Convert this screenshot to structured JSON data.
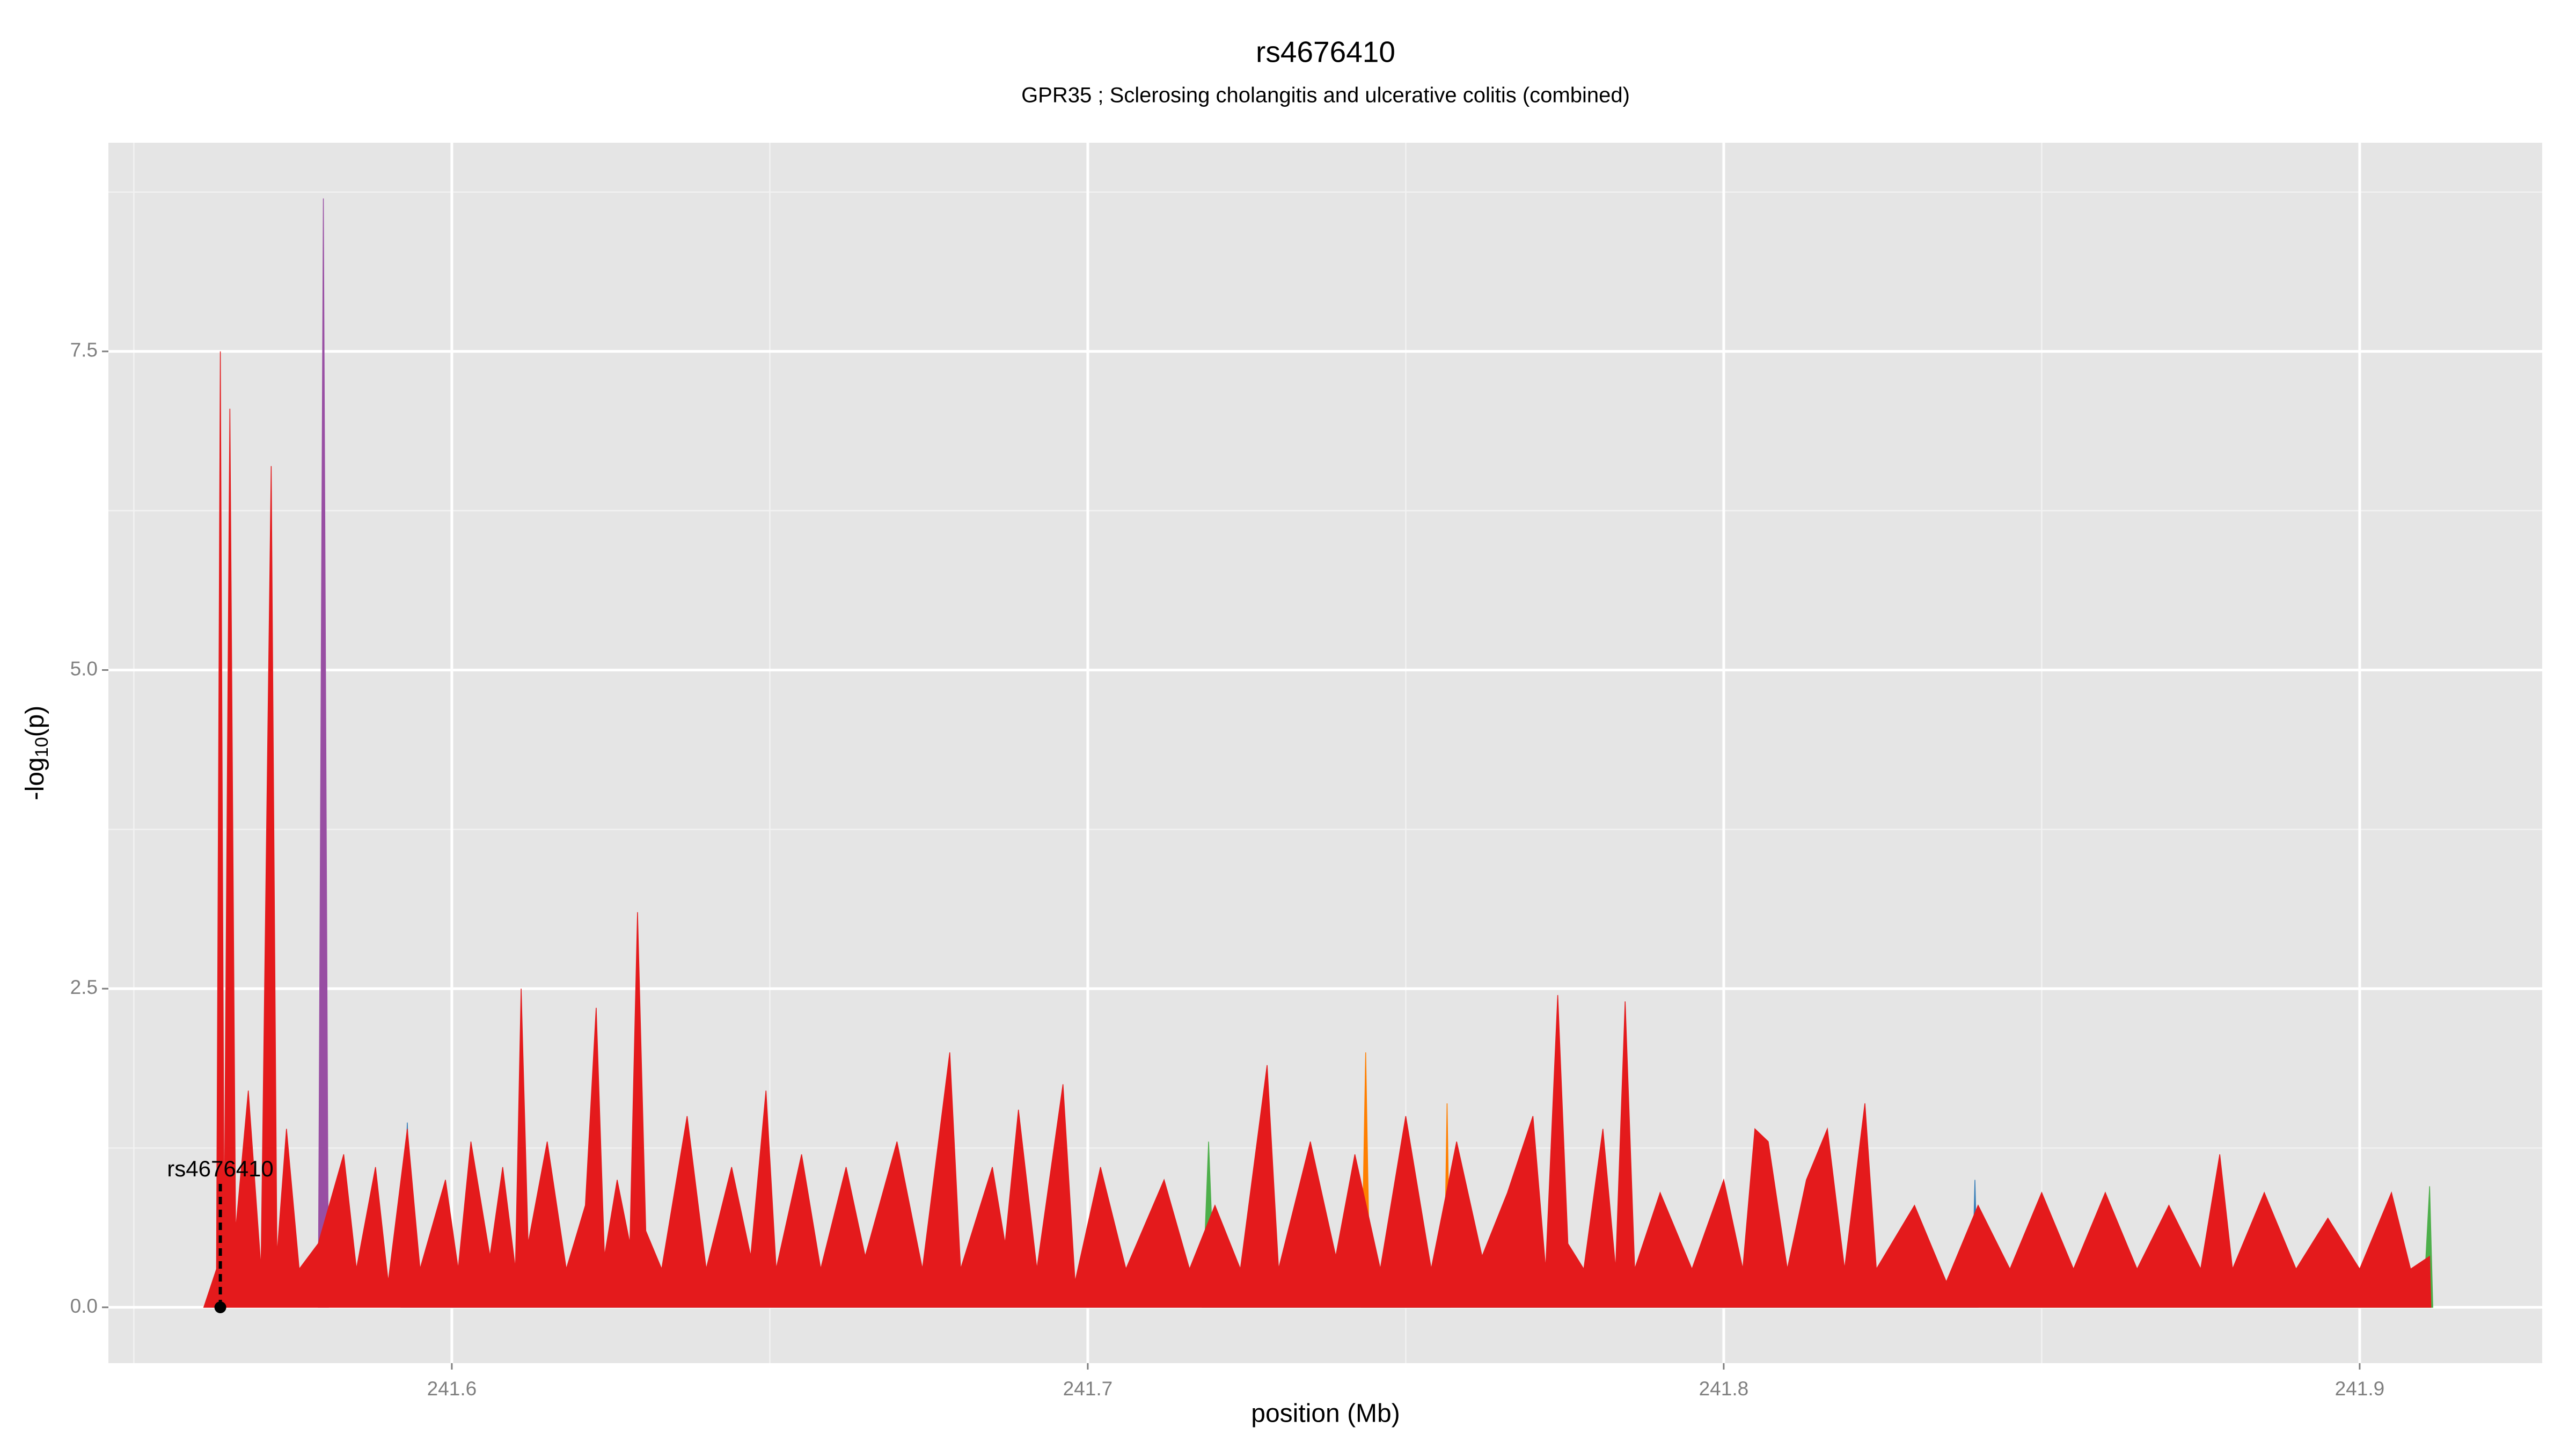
{
  "chart_data": {
    "type": "area",
    "title": "rs4676410",
    "subtitle": "GPR35 ; Sclerosing cholangitis and ulcerative colitis (combined)",
    "x_label": "position (Mb)",
    "y_label": {
      "prefix": "-log",
      "subscript": "10",
      "suffix": "(p)"
    },
    "xlim": [
      241.546,
      241.9287
    ],
    "ylim": [
      -0.438,
      9.137
    ],
    "xticks": [
      241.6,
      241.7,
      241.8,
      241.9
    ],
    "yticks": [
      {
        "value": 0,
        "label": "0.0"
      },
      {
        "value": 2.5,
        "label": "2.5"
      },
      {
        "value": 5,
        "label": "5.0"
      },
      {
        "value": 7.5,
        "label": "7.5"
      }
    ],
    "minor_xticks": [
      241.55,
      241.65,
      241.75,
      241.85
    ],
    "minor_yticks": [
      1.25,
      3.75,
      6.25,
      8.75
    ],
    "grid": true,
    "highlight": {
      "label": "rs4676410",
      "x": 241.5636,
      "y": 0
    },
    "series": [
      {
        "color": "#984ea3",
        "x": [
          241.579,
          241.5798,
          241.5806
        ],
        "values": [
          0,
          8.7,
          0
        ]
      },
      {
        "color": "#ff7f00",
        "x": [
          241.743,
          241.7437,
          241.7444,
          241.756,
          241.7565,
          241.757
        ],
        "values": [
          0,
          2.0,
          0,
          0,
          1.6,
          0
        ]
      },
      {
        "color": "#4daf4a",
        "x": [
          241.718,
          241.719,
          241.72,
          241.91,
          241.911,
          241.9115
        ],
        "values": [
          0,
          1.3,
          0,
          0,
          0.95,
          0
        ]
      },
      {
        "color": "#377eb8",
        "x": [
          241.592,
          241.593,
          241.594,
          241.839,
          241.8395,
          241.84
        ],
        "values": [
          0,
          1.45,
          0,
          0,
          1.0,
          0
        ]
      },
      {
        "color": "#e41a1c",
        "x": [
          241.561,
          241.563,
          241.5636,
          241.5642,
          241.5651,
          241.566,
          241.568,
          241.57,
          241.5716,
          241.5725,
          241.574,
          241.576,
          241.579,
          241.583,
          241.585,
          241.588,
          241.59,
          241.593,
          241.595,
          241.599,
          241.601,
          241.603,
          241.606,
          241.608,
          241.61,
          241.6109,
          241.612,
          241.615,
          241.618,
          241.621,
          241.6227,
          241.624,
          241.626,
          241.628,
          241.6292,
          241.6305,
          241.633,
          241.637,
          241.64,
          241.644,
          241.647,
          241.6494,
          241.651,
          241.655,
          241.658,
          241.662,
          241.665,
          241.67,
          241.674,
          241.6783,
          241.68,
          241.685,
          241.687,
          241.6891,
          241.692,
          241.6961,
          241.698,
          241.702,
          241.706,
          241.712,
          241.716,
          241.72,
          241.724,
          241.7282,
          241.73,
          241.735,
          241.739,
          241.742,
          241.746,
          241.75,
          241.754,
          241.758,
          241.762,
          241.766,
          241.77,
          241.772,
          241.7739,
          241.7755,
          241.778,
          241.781,
          241.783,
          241.7845,
          241.786,
          241.79,
          241.795,
          241.8,
          241.803,
          241.8049,
          241.807,
          241.81,
          241.813,
          241.8163,
          241.819,
          241.8222,
          241.824,
          241.83,
          241.835,
          241.84,
          241.845,
          241.85,
          241.855,
          241.86,
          241.865,
          241.87,
          241.875,
          241.878,
          241.88,
          241.885,
          241.89,
          241.895,
          241.9,
          241.905,
          241.908,
          241.911,
          241.9112
        ],
        "values": [
          0,
          0.3,
          7.5,
          0.5,
          7.05,
          0.6,
          1.7,
          0.3,
          6.6,
          0.4,
          1.4,
          0.3,
          0.5,
          1.2,
          0.3,
          1.1,
          0.2,
          1.4,
          0.3,
          1.0,
          0.3,
          1.3,
          0.4,
          1.1,
          0.3,
          2.5,
          0.5,
          1.3,
          0.3,
          0.8,
          2.35,
          0.4,
          1.0,
          0.5,
          3.1,
          0.6,
          0.3,
          1.5,
          0.3,
          1.1,
          0.4,
          1.7,
          0.3,
          1.2,
          0.3,
          1.1,
          0.4,
          1.3,
          0.3,
          2.0,
          0.3,
          1.1,
          0.5,
          1.55,
          0.3,
          1.75,
          0.2,
          1.1,
          0.3,
          1.0,
          0.3,
          0.8,
          0.3,
          1.9,
          0.3,
          1.3,
          0.4,
          1.2,
          0.3,
          1.5,
          0.3,
          1.3,
          0.4,
          0.9,
          1.5,
          0.3,
          2.45,
          0.5,
          0.3,
          1.4,
          0.3,
          2.4,
          0.3,
          0.9,
          0.3,
          1.0,
          0.3,
          1.4,
          1.3,
          0.3,
          1.0,
          1.4,
          0.3,
          1.6,
          0.3,
          0.8,
          0.2,
          0.8,
          0.3,
          0.9,
          0.3,
          0.9,
          0.3,
          0.8,
          0.3,
          1.2,
          0.3,
          0.9,
          0.3,
          0.7,
          0.3,
          0.9,
          0.3,
          0.4,
          0
        ]
      }
    ]
  }
}
